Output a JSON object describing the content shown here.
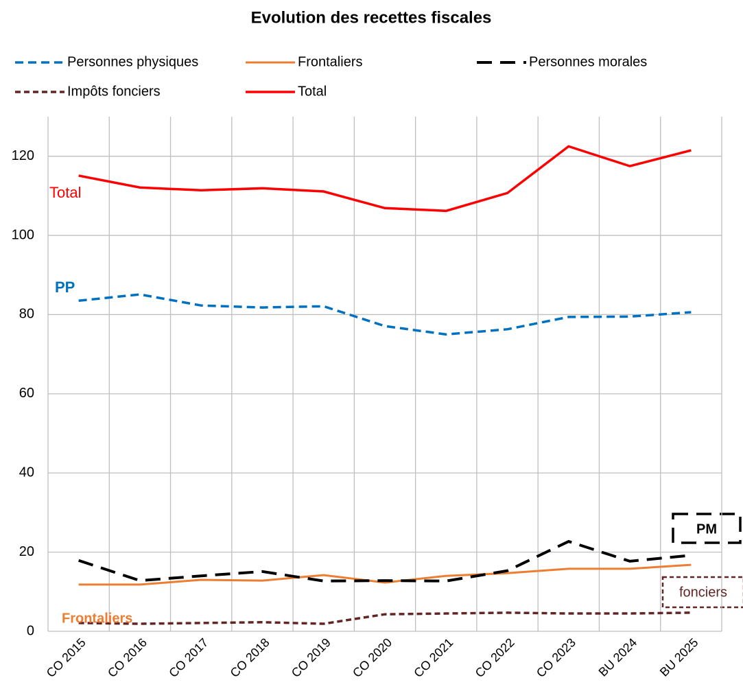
{
  "chart_data": {
    "type": "line",
    "title": "Evolution des recettes fiscales",
    "categories": [
      "CO 2015",
      "CO 2016",
      "CO 2017",
      "CO 2018",
      "CO 2019",
      "CO 2020",
      "CO 2021",
      "CO 2022",
      "CO 2023",
      "BU 2024",
      "BU 2025"
    ],
    "series": [
      {
        "name": "Personnes physiques",
        "color": "#0070c0",
        "line_style": "dashed",
        "values": [
          83.5,
          85.1,
          82.3,
          81.8,
          82.1,
          77.1,
          75.0,
          76.3,
          79.4,
          79.5,
          80.6
        ]
      },
      {
        "name": "Frontaliers",
        "color": "#ed7d31",
        "line_style": "solid",
        "values": [
          11.8,
          11.8,
          13.0,
          12.8,
          14.2,
          12.3,
          14.0,
          14.7,
          15.8,
          15.8,
          16.8
        ]
      },
      {
        "name": "Personnes morales",
        "color": "#000000",
        "line_style": "long-dashed",
        "values": [
          17.9,
          12.8,
          14.0,
          15.1,
          12.7,
          12.8,
          12.7,
          15.3,
          22.7,
          17.7,
          19.2
        ]
      },
      {
        "name": "Impôts fonciers",
        "color": "#632523",
        "line_style": "dotted",
        "values": [
          2.1,
          1.9,
          2.1,
          2.3,
          1.9,
          4.3,
          4.5,
          4.7,
          4.5,
          4.5,
          4.7
        ]
      },
      {
        "name": "Total",
        "color": "#ff0000",
        "line_style": "solid",
        "values": [
          115.1,
          112.1,
          111.4,
          111.9,
          111.1,
          106.9,
          106.2,
          110.7,
          122.5,
          117.5,
          121.5
        ]
      }
    ],
    "annotations": [
      "PP",
      "Frontaliers",
      "PM",
      "fonciers",
      "Total"
    ],
    "ylim": [
      0,
      130
    ],
    "yticks": [
      0,
      20,
      40,
      60,
      80,
      100,
      120
    ],
    "grid": true
  }
}
